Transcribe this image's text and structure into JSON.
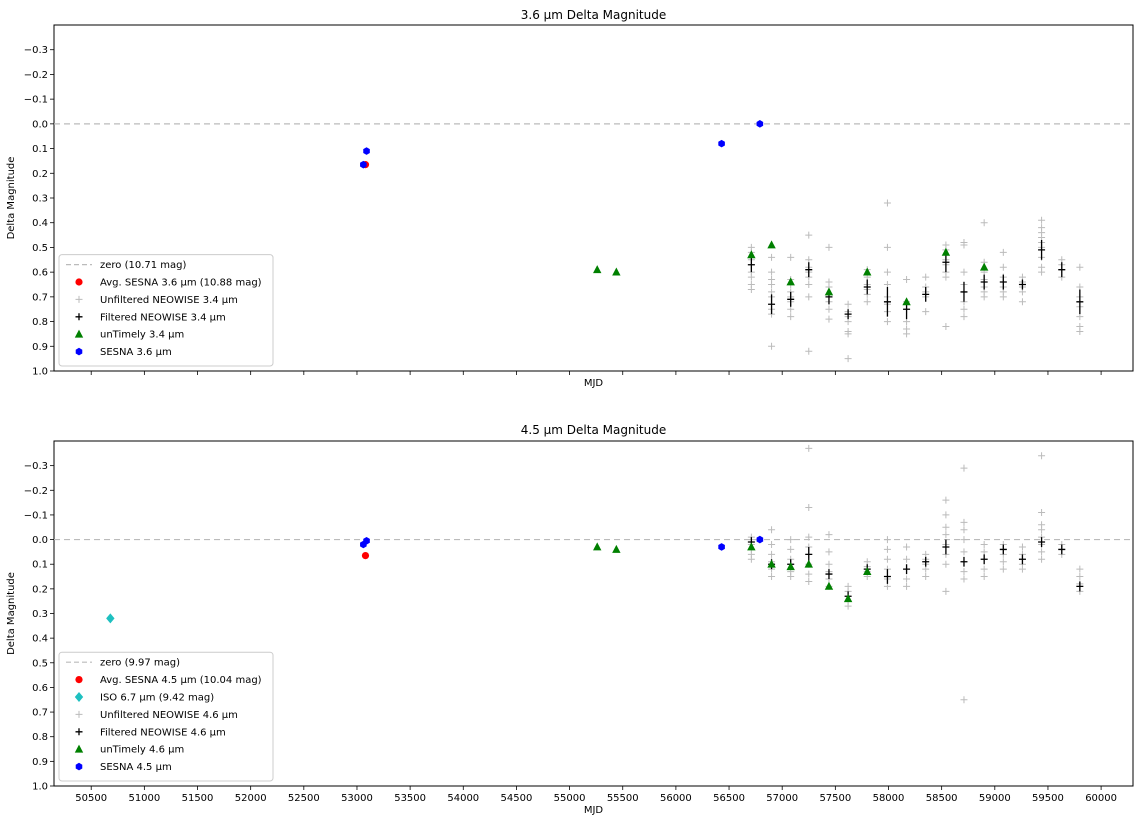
{
  "colors": {
    "avg_sesna": "#ff0000",
    "iso": "#1ec0c0",
    "unfiltered": "#bbbbbb",
    "filtered": "#000000",
    "untimely": "#008000",
    "sesna": "#0000ff",
    "zero_line": "#bbbbbb"
  },
  "chart_data": [
    {
      "type": "scatter",
      "title": "3.6 μm Delta Magnitude",
      "xlabel": "MJD",
      "ylabel": "Delta Magnitude",
      "xlim": [
        50150,
        60300
      ],
      "ylim": [
        1.0,
        -0.4
      ],
      "y_inverted": true,
      "grid": false,
      "legend_position": "lower-left",
      "x_tick_labels_shown": false,
      "xticks": [
        50500,
        51000,
        51500,
        52000,
        52500,
        53000,
        53500,
        54000,
        54500,
        55000,
        55500,
        56000,
        56500,
        57000,
        57500,
        58000,
        58500,
        59000,
        59500,
        60000
      ],
      "yticks": [
        1.0,
        0.9,
        0.8,
        0.7,
        0.6,
        0.5,
        0.4,
        0.3,
        0.2,
        0.1,
        0.0,
        -0.1,
        -0.2,
        -0.3
      ],
      "ytick_labels": [
        "1.0",
        "0.9",
        "0.8",
        "0.7",
        "0.6",
        "0.5",
        "0.4",
        "0.3",
        "0.2",
        "0.1",
        "0.0",
        "−0.1",
        "−0.2",
        "−0.3"
      ],
      "series": [
        {
          "key": "zero",
          "name": "zero (10.71 mag)",
          "marker": "dashed-line",
          "color": "#bbbbbb",
          "y": 0.0
        },
        {
          "key": "avg",
          "name": "Avg. SESNA 3.6 μm (10.88 mag)",
          "marker": "circle",
          "color": "#ff0000",
          "points": [
            [
              53080,
              0.165
            ]
          ]
        },
        {
          "key": "unfiltered",
          "name": "Unfiltered NEOWISE 3.4 μm",
          "marker": "plus",
          "color": "#bbbbbb",
          "epochs": [
            {
              "x": 56710,
              "y": [
                0.5,
                0.52,
                0.54,
                0.55,
                0.57,
                0.6,
                0.62,
                0.65,
                0.67
              ]
            },
            {
              "x": 56900,
              "y": [
                0.54,
                0.6,
                0.63,
                0.65,
                0.68,
                0.7,
                0.75,
                0.77,
                0.9
              ]
            },
            {
              "x": 57080,
              "y": [
                0.54,
                0.63,
                0.65,
                0.68,
                0.7,
                0.72,
                0.75,
                0.78
              ]
            },
            {
              "x": 57250,
              "y": [
                0.45,
                0.55,
                0.58,
                0.6,
                0.62,
                0.65,
                0.7,
                0.92
              ]
            },
            {
              "x": 57440,
              "y": [
                0.5,
                0.64,
                0.66,
                0.7,
                0.72,
                0.75,
                0.79
              ]
            },
            {
              "x": 57620,
              "y": [
                0.73,
                0.76,
                0.78,
                0.8,
                0.84,
                0.85,
                0.95
              ]
            },
            {
              "x": 57800,
              "y": [
                0.59,
                0.62,
                0.65,
                0.67,
                0.69,
                0.72
              ]
            },
            {
              "x": 57990,
              "y": [
                0.32,
                0.5,
                0.6,
                0.65,
                0.7,
                0.73,
                0.76,
                0.8
              ]
            },
            {
              "x": 58170,
              "y": [
                0.63,
                0.72,
                0.75,
                0.8,
                0.83,
                0.85
              ]
            },
            {
              "x": 58350,
              "y": [
                0.62,
                0.66,
                0.68,
                0.7,
                0.76
              ]
            },
            {
              "x": 58540,
              "y": [
                0.49,
                0.51,
                0.55,
                0.57,
                0.6,
                0.62,
                0.82
              ]
            },
            {
              "x": 58710,
              "y": [
                0.48,
                0.49,
                0.6,
                0.65,
                0.68,
                0.72,
                0.75,
                0.78
              ]
            },
            {
              "x": 58900,
              "y": [
                0.4,
                0.56,
                0.6,
                0.63,
                0.66,
                0.68,
                0.7
              ]
            },
            {
              "x": 59080,
              "y": [
                0.52,
                0.58,
                0.62,
                0.64,
                0.66,
                0.68,
                0.7
              ]
            },
            {
              "x": 59260,
              "y": [
                0.62,
                0.64,
                0.66,
                0.68,
                0.72
              ]
            },
            {
              "x": 59440,
              "y": [
                0.39,
                0.42,
                0.44,
                0.46,
                0.48,
                0.5,
                0.54,
                0.58,
                0.6
              ]
            },
            {
              "x": 59630,
              "y": [
                0.55,
                0.57,
                0.59,
                0.62
              ]
            },
            {
              "x": 59800,
              "y": [
                0.58,
                0.66,
                0.7,
                0.74,
                0.78,
                0.82,
                0.84
              ]
            }
          ]
        },
        {
          "key": "filtered",
          "name": "Filtered NEOWISE 3.4 μm",
          "marker": "errorbar",
          "color": "#000000",
          "points": [
            [
              56710,
              0.57,
              0.03
            ],
            [
              56900,
              0.73,
              0.04
            ],
            [
              57080,
              0.71,
              0.03
            ],
            [
              57250,
              0.59,
              0.03
            ],
            [
              57440,
              0.7,
              0.03
            ],
            [
              57620,
              0.77,
              0.02
            ],
            [
              57800,
              0.66,
              0.03
            ],
            [
              57990,
              0.72,
              0.06
            ],
            [
              58170,
              0.75,
              0.04
            ],
            [
              58350,
              0.69,
              0.03
            ],
            [
              58540,
              0.56,
              0.04
            ],
            [
              58710,
              0.68,
              0.04
            ],
            [
              58900,
              0.64,
              0.03
            ],
            [
              59080,
              0.64,
              0.03
            ],
            [
              59260,
              0.65,
              0.02
            ],
            [
              59440,
              0.51,
              0.04
            ],
            [
              59630,
              0.59,
              0.03
            ],
            [
              59800,
              0.72,
              0.05
            ]
          ]
        },
        {
          "key": "untimely",
          "name": "unTimely 3.4 μm",
          "marker": "triangle",
          "color": "#008000",
          "points": [
            [
              55260,
              0.59
            ],
            [
              55440,
              0.6
            ],
            [
              56710,
              0.53
            ],
            [
              56900,
              0.49
            ],
            [
              57080,
              0.64
            ],
            [
              57440,
              0.68
            ],
            [
              57800,
              0.6
            ],
            [
              58170,
              0.72
            ],
            [
              58540,
              0.52
            ],
            [
              58900,
              0.58
            ]
          ]
        },
        {
          "key": "sesna",
          "name": "SESNA 3.6 μm",
          "marker": "hexagon",
          "color": "#0000ff",
          "points": [
            [
              53060,
              0.165
            ],
            [
              53090,
              0.11
            ],
            [
              56430,
              0.08
            ],
            [
              56790,
              0.0
            ]
          ]
        }
      ]
    },
    {
      "type": "scatter",
      "title": "4.5 μm Delta Magnitude",
      "xlabel": "MJD",
      "ylabel": "Delta Magnitude",
      "xlim": [
        50150,
        60300
      ],
      "ylim": [
        1.0,
        -0.4
      ],
      "y_inverted": true,
      "grid": false,
      "legend_position": "lower-left",
      "x_tick_labels_shown": true,
      "xticks": [
        50500,
        51000,
        51500,
        52000,
        52500,
        53000,
        53500,
        54000,
        54500,
        55000,
        55500,
        56000,
        56500,
        57000,
        57500,
        58000,
        58500,
        59000,
        59500,
        60000
      ],
      "xtick_labels": [
        "50500",
        "51000",
        "51500",
        "52000",
        "52500",
        "53000",
        "53500",
        "54000",
        "54500",
        "55000",
        "55500",
        "56000",
        "56500",
        "57000",
        "57500",
        "58000",
        "58500",
        "59000",
        "59500",
        "60000"
      ],
      "yticks": [
        1.0,
        0.9,
        0.8,
        0.7,
        0.6,
        0.5,
        0.4,
        0.3,
        0.2,
        0.1,
        0.0,
        -0.1,
        -0.2,
        -0.3
      ],
      "ytick_labels": [
        "1.0",
        "0.9",
        "0.8",
        "0.7",
        "0.6",
        "0.5",
        "0.4",
        "0.3",
        "0.2",
        "0.1",
        "0.0",
        "−0.1",
        "−0.2",
        "−0.3"
      ],
      "series": [
        {
          "key": "zero",
          "name": "zero (9.97 mag)",
          "marker": "dashed-line",
          "color": "#bbbbbb",
          "y": 0.0
        },
        {
          "key": "avg",
          "name": "Avg. SESNA 4.5 μm (10.04 mag)",
          "marker": "circle",
          "color": "#ff0000",
          "points": [
            [
              53080,
              0.065
            ]
          ]
        },
        {
          "key": "iso",
          "name": "ISO 6.7 μm (9.42 mag)",
          "marker": "diamond",
          "color": "#1ec0c0",
          "points": [
            [
              50680,
              0.32
            ]
          ]
        },
        {
          "key": "unfiltered",
          "name": "Unfiltered NEOWISE 4.6 μm",
          "marker": "plus",
          "color": "#bbbbbb",
          "epochs": [
            {
              "x": 56710,
              "y": [
                -0.01,
                0.0,
                0.02,
                0.04,
                0.06,
                0.08
              ]
            },
            {
              "x": 56900,
              "y": [
                -0.04,
                0.02,
                0.06,
                0.09,
                0.12,
                0.15
              ]
            },
            {
              "x": 57080,
              "y": [
                0.0,
                0.04,
                0.08,
                0.1,
                0.13,
                0.15
              ]
            },
            {
              "x": 57250,
              "y": [
                -0.37,
                -0.13,
                -0.01,
                0.03,
                0.06,
                0.1,
                0.14,
                0.17
              ]
            },
            {
              "x": 57440,
              "y": [
                -0.02,
                0.05,
                0.1,
                0.13,
                0.16,
                0.19
              ]
            },
            {
              "x": 57620,
              "y": [
                0.19,
                0.21,
                0.23,
                0.25,
                0.27
              ]
            },
            {
              "x": 57800,
              "y": [
                0.09,
                0.11,
                0.13,
                0.15
              ]
            },
            {
              "x": 57990,
              "y": [
                0.0,
                0.04,
                0.08,
                0.12,
                0.16,
                0.19
              ]
            },
            {
              "x": 58170,
              "y": [
                0.03,
                0.08,
                0.12,
                0.16,
                0.19
              ]
            },
            {
              "x": 58350,
              "y": [
                0.06,
                0.08,
                0.1,
                0.12,
                0.15
              ]
            },
            {
              "x": 58540,
              "y": [
                -0.16,
                -0.1,
                -0.05,
                -0.02,
                0.02,
                0.06,
                0.1,
                0.21
              ]
            },
            {
              "x": 58710,
              "y": [
                -0.29,
                -0.07,
                -0.04,
                0.0,
                0.05,
                0.09,
                0.13,
                0.16,
                0.65
              ]
            },
            {
              "x": 58900,
              "y": [
                0.02,
                0.05,
                0.08,
                0.12,
                0.15
              ]
            },
            {
              "x": 59080,
              "y": [
                0.02,
                0.04,
                0.06,
                0.09,
                0.12
              ]
            },
            {
              "x": 59260,
              "y": [
                0.03,
                0.06,
                0.08,
                0.1,
                0.12
              ]
            },
            {
              "x": 59440,
              "y": [
                -0.34,
                -0.11,
                -0.06,
                -0.04,
                -0.01,
                0.02,
                0.05,
                0.08
              ]
            },
            {
              "x": 59630,
              "y": [
                0.02,
                0.04,
                0.06
              ]
            },
            {
              "x": 59800,
              "y": [
                0.12,
                0.15,
                0.18,
                0.21
              ]
            }
          ]
        },
        {
          "key": "filtered",
          "name": "Filtered NEOWISE 4.6 μm",
          "marker": "errorbar",
          "color": "#000000",
          "points": [
            [
              56710,
              0.01,
              0.02
            ],
            [
              56900,
              0.1,
              0.02
            ],
            [
              57080,
              0.1,
              0.02
            ],
            [
              57250,
              0.06,
              0.03
            ],
            [
              57440,
              0.14,
              0.02
            ],
            [
              57620,
              0.23,
              0.02
            ],
            [
              57800,
              0.12,
              0.02
            ],
            [
              57990,
              0.15,
              0.03
            ],
            [
              58170,
              0.12,
              0.02
            ],
            [
              58350,
              0.09,
              0.02
            ],
            [
              58540,
              0.03,
              0.03
            ],
            [
              58710,
              0.09,
              0.02
            ],
            [
              58900,
              0.08,
              0.02
            ],
            [
              59080,
              0.04,
              0.02
            ],
            [
              59260,
              0.08,
              0.02
            ],
            [
              59440,
              0.01,
              0.02
            ],
            [
              59630,
              0.04,
              0.02
            ],
            [
              59800,
              0.19,
              0.02
            ]
          ]
        },
        {
          "key": "untimely",
          "name": "unTimely 4.6 μm",
          "marker": "triangle",
          "color": "#008000",
          "points": [
            [
              55260,
              0.03
            ],
            [
              55440,
              0.04
            ],
            [
              56710,
              0.03
            ],
            [
              56900,
              0.1
            ],
            [
              57080,
              0.11
            ],
            [
              57250,
              0.1
            ],
            [
              57440,
              0.19
            ],
            [
              57620,
              0.24
            ],
            [
              57800,
              0.13
            ]
          ]
        },
        {
          "key": "sesna",
          "name": "SESNA 4.5 μm",
          "marker": "hexagon",
          "color": "#0000ff",
          "points": [
            [
              53060,
              0.02
            ],
            [
              53090,
              0.005
            ],
            [
              56430,
              0.03
            ],
            [
              56790,
              0.0
            ]
          ]
        }
      ]
    }
  ]
}
